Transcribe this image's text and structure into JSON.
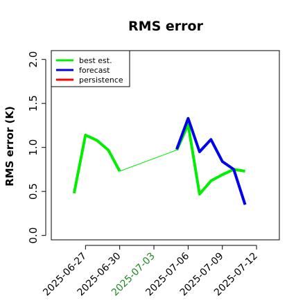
{
  "chart_data": {
    "type": "line",
    "title": "RMS error",
    "ylabel": "RMS error (K)",
    "xlabel": "",
    "ylim": [
      -0.05,
      2.1
    ],
    "yticks": [
      "0.0",
      "0.5",
      "1.0",
      "1.5",
      "2.0"
    ],
    "xlim": [
      "2025-06-24",
      "2025-07-14"
    ],
    "xticks": [
      {
        "label": "2025-06-27",
        "date": "2025-06-27",
        "color": "#000000"
      },
      {
        "label": "2025-06-30",
        "date": "2025-06-30",
        "color": "#000000"
      },
      {
        "label": "2025-07-03",
        "date": "2025-07-03",
        "color": "#228B22"
      },
      {
        "label": "2025-07-06",
        "date": "2025-07-06",
        "color": "#000000"
      },
      {
        "label": "2025-07-09",
        "date": "2025-07-09",
        "color": "#000000"
      },
      {
        "label": "2025-07-12",
        "date": "2025-07-12",
        "color": "#000000"
      }
    ],
    "legend_position": "top-left",
    "series": [
      {
        "name": "best est.",
        "color": "#00ee00",
        "segments": [
          {
            "x": [
              "2025-06-26",
              "2025-06-27",
              "2025-06-28",
              "2025-06-29",
              "2025-06-30"
            ],
            "y": [
              0.48,
              1.14,
              1.08,
              0.97,
              0.73
            ],
            "thick": true
          },
          {
            "x": [
              "2025-06-30",
              "2025-07-05"
            ],
            "y": [
              0.73,
              0.97
            ],
            "thick": false
          },
          {
            "x": [
              "2025-07-05",
              "2025-07-06",
              "2025-07-07",
              "2025-07-08",
              "2025-07-09",
              "2025-07-10",
              "2025-07-11"
            ],
            "y": [
              0.97,
              1.26,
              0.47,
              0.62,
              0.69,
              0.75,
              0.73
            ],
            "thick": true
          }
        ]
      },
      {
        "name": "forecast",
        "color": "#0000ee",
        "segments": [
          {
            "x": [
              "2025-07-05",
              "2025-07-06",
              "2025-07-07",
              "2025-07-08",
              "2025-07-09",
              "2025-07-10",
              "2025-07-11"
            ],
            "y": [
              0.98,
              1.33,
              0.95,
              1.09,
              0.84,
              0.75,
              0.35
            ],
            "thick": true
          }
        ]
      },
      {
        "name": "persistence",
        "color": "#ff0000",
        "segments": []
      }
    ]
  }
}
